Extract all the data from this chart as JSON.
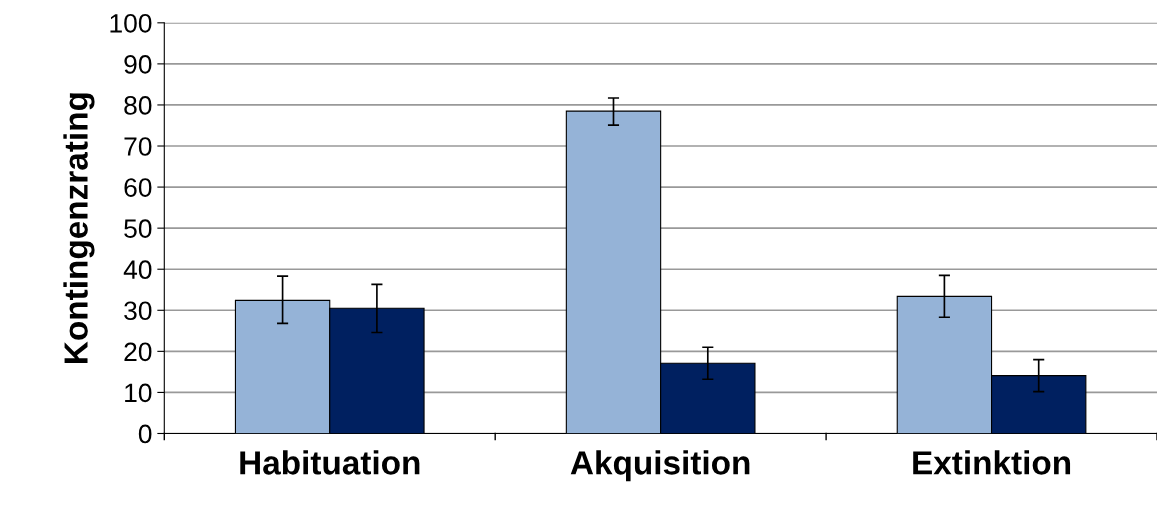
{
  "chart_data": {
    "type": "bar",
    "ylabel": "Kontingenzrating",
    "categories": [
      "Habituation",
      "Akquisition",
      "Extinktion"
    ],
    "series": [
      {
        "color": "#95b3d7",
        "values": [
          32.4,
          78.5,
          33.4
        ],
        "errors": [
          [
            26.8,
            38.3
          ],
          [
            75.1,
            81.7
          ],
          [
            28.3,
            38.5
          ]
        ]
      },
      {
        "color": "#002060",
        "values": [
          30.5,
          17.1,
          14.1
        ],
        "errors": [
          [
            24.6,
            36.3
          ],
          [
            13.2,
            21.0
          ],
          [
            10.2,
            18.0
          ]
        ]
      }
    ],
    "ylim": [
      0,
      100
    ],
    "yticks": [
      0,
      10,
      20,
      30,
      40,
      50,
      60,
      70,
      80,
      90,
      100
    ],
    "grid": "y",
    "legend": false
  }
}
